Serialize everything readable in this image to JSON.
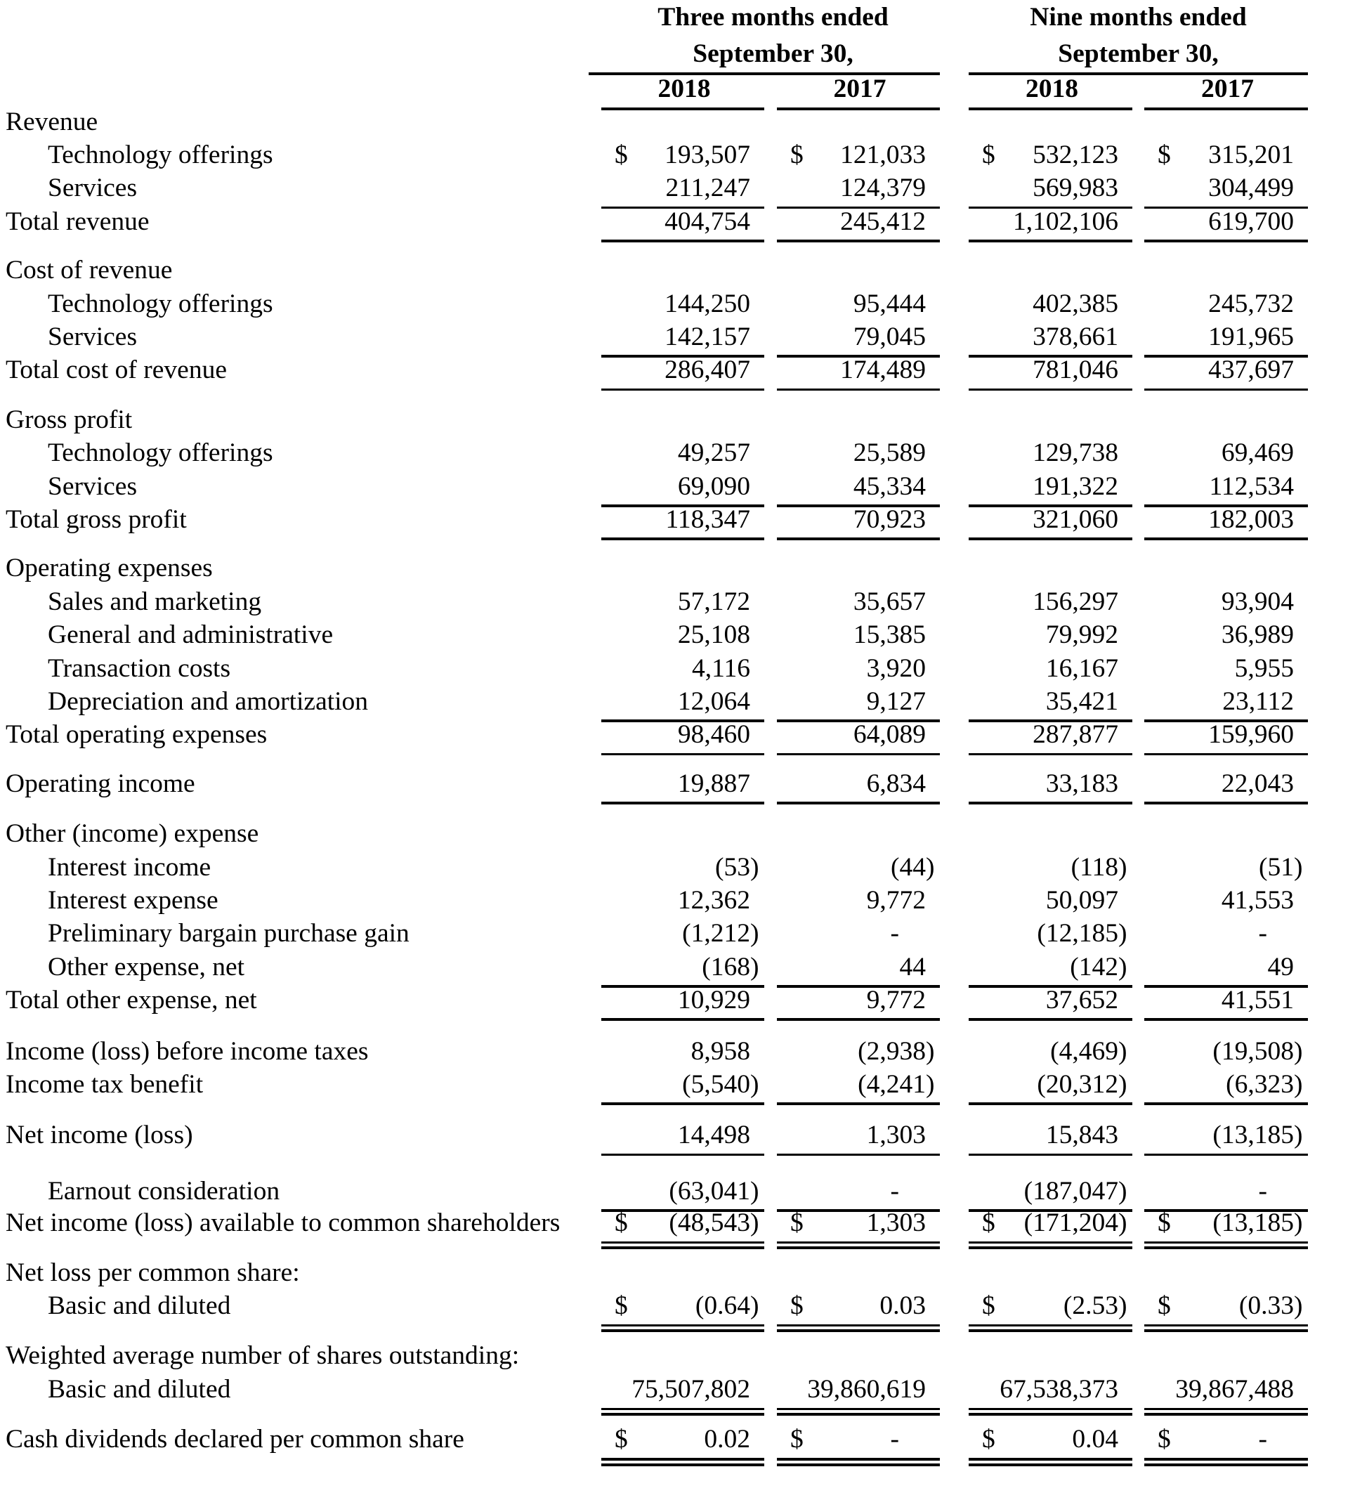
{
  "document": {
    "type": "income statement table",
    "currency_symbol": "$",
    "text_color": "#000000",
    "background_color": "#ffffff",
    "column_groups": [
      {
        "title_line1": "Three months ended",
        "title_line2": "September 30,",
        "years": [
          "2018",
          "2017"
        ]
      },
      {
        "title_line1": "Nine months ended",
        "title_line2": "September 30,",
        "years": [
          "2018",
          "2017"
        ]
      }
    ],
    "rows": [
      {
        "label": "Revenue",
        "indent": 0,
        "values": null
      },
      {
        "label": "Technology offerings",
        "indent": 1,
        "dollar": true,
        "values": [
          "193,507",
          "121,033",
          "532,123",
          "315,201"
        ]
      },
      {
        "label": "Services",
        "indent": 1,
        "values": [
          "211,247",
          "124,379",
          "569,983",
          "304,499"
        ],
        "line": "single"
      },
      {
        "label": "Total revenue",
        "indent": 0,
        "values": [
          "404,754",
          "245,412",
          "1,102,106",
          "619,700"
        ],
        "line": "single"
      },
      {
        "label": "Cost of revenue",
        "indent": 0,
        "values": null,
        "gap_before": 22
      },
      {
        "label": "Technology offerings",
        "indent": 1,
        "values": [
          "144,250",
          "95,444",
          "402,385",
          "245,732"
        ]
      },
      {
        "label": "Services",
        "indent": 1,
        "values": [
          "142,157",
          "79,045",
          "378,661",
          "191,965"
        ],
        "line": "single"
      },
      {
        "label": "Total cost of revenue",
        "indent": 0,
        "values": [
          "286,407",
          "174,489",
          "781,046",
          "437,697"
        ],
        "line": "single"
      },
      {
        "label": "Gross profit",
        "indent": 0,
        "values": null,
        "gap_before": 23
      },
      {
        "label": "Technology offerings",
        "indent": 1,
        "values": [
          "49,257",
          "25,589",
          "129,738",
          "69,469"
        ]
      },
      {
        "label": "Services",
        "indent": 1,
        "values": [
          "69,090",
          "45,334",
          "191,322",
          "112,534"
        ],
        "line": "single"
      },
      {
        "label": "Total gross profit",
        "indent": 0,
        "values": [
          "118,347",
          "70,923",
          "321,060",
          "182,003"
        ],
        "line": "single"
      },
      {
        "label": "Operating expenses",
        "indent": 0,
        "values": null,
        "gap_before": 22
      },
      {
        "label": "Sales and marketing",
        "indent": 1,
        "values": [
          "57,172",
          "35,657",
          "156,297",
          "93,904"
        ]
      },
      {
        "label": "General and administrative",
        "indent": 1,
        "values": [
          "25,108",
          "15,385",
          "79,992",
          "36,989"
        ]
      },
      {
        "label": "Transaction costs",
        "indent": 1,
        "values": [
          "4,116",
          "3,920",
          "16,167",
          "5,955"
        ]
      },
      {
        "label": "Depreciation and amortization",
        "indent": 1,
        "values": [
          "12,064",
          "9,127",
          "35,421",
          "23,112"
        ],
        "line": "single"
      },
      {
        "label": "Total operating expenses",
        "indent": 0,
        "values": [
          "98,460",
          "64,089",
          "287,877",
          "159,960"
        ],
        "line": "single"
      },
      {
        "label": "Operating income",
        "indent": 0,
        "gap_before": 22,
        "values": [
          "19,887",
          "6,834",
          "33,183",
          "22,043"
        ],
        "line": "single"
      },
      {
        "label": "Other (income) expense",
        "indent": 0,
        "values": null,
        "gap_before": 24
      },
      {
        "label": "Interest income",
        "indent": 1,
        "values": [
          "(53)",
          "(44)",
          "(118)",
          "(51)"
        ]
      },
      {
        "label": "Interest expense",
        "indent": 1,
        "values": [
          "12,362",
          "9,772",
          "50,097",
          "41,553"
        ]
      },
      {
        "label": "Preliminary bargain purchase gain",
        "indent": 1,
        "values": [
          "(1,212)",
          "-",
          "(12,185)",
          "-"
        ]
      },
      {
        "label": "Other expense, net",
        "indent": 1,
        "values": [
          "(168)",
          "44",
          "(142)",
          "49"
        ],
        "line": "single"
      },
      {
        "label": "Total other expense, net",
        "indent": 0,
        "values": [
          "10,929",
          "9,772",
          "37,652",
          "41,551"
        ],
        "line": "single"
      },
      {
        "label": "Income (loss) before income taxes",
        "indent": 0,
        "gap_before": 25,
        "values": [
          "8,958",
          "(2,938)",
          "(4,469)",
          "(19,508)"
        ]
      },
      {
        "label": "Income tax benefit",
        "indent": 0,
        "values": [
          "(5,540)",
          "(4,241)",
          "(20,312)",
          "(6,323)"
        ],
        "line": "single"
      },
      {
        "label": "Net income (loss)",
        "indent": 0,
        "gap_before": 25,
        "values": [
          "14,498",
          "1,303",
          "15,843",
          "(13,185)"
        ],
        "line": "single"
      },
      {
        "label": "Earnout consideration",
        "indent": 1,
        "gap_before": 32,
        "values": [
          "(63,041)",
          "-",
          "(187,047)",
          "-"
        ],
        "line": "single"
      },
      {
        "label": "Net income (loss) available to common shareholders",
        "indent": 0,
        "dollar": true,
        "gap_before": -2.5,
        "values": [
          "(48,543)",
          "1,303",
          "(171,204)",
          "(13,185)"
        ],
        "line": "double"
      },
      {
        "label": "Net loss per common share:",
        "indent": 0,
        "values": null,
        "gap_before": 23.4
      },
      {
        "label": "Basic and diluted",
        "indent": 1,
        "dollar": true,
        "values": [
          "(0.64)",
          "0.03",
          "(2.53)",
          "(0.33)"
        ],
        "line": "double"
      },
      {
        "label": "Weighted average number of shares outstanding:",
        "indent": 0,
        "values": null,
        "gap_before": 24
      },
      {
        "label": "Basic and diluted",
        "indent": 1,
        "values": [
          "75,507,802",
          "39,860,619",
          "67,538,373",
          "39,867,488"
        ],
        "line": "double"
      },
      {
        "label": "Cash dividends declared per common share",
        "indent": 0,
        "dollar": true,
        "gap_before": 24.2,
        "values": [
          "0.02",
          "-",
          "0.04",
          "-"
        ],
        "line": "double"
      }
    ]
  }
}
